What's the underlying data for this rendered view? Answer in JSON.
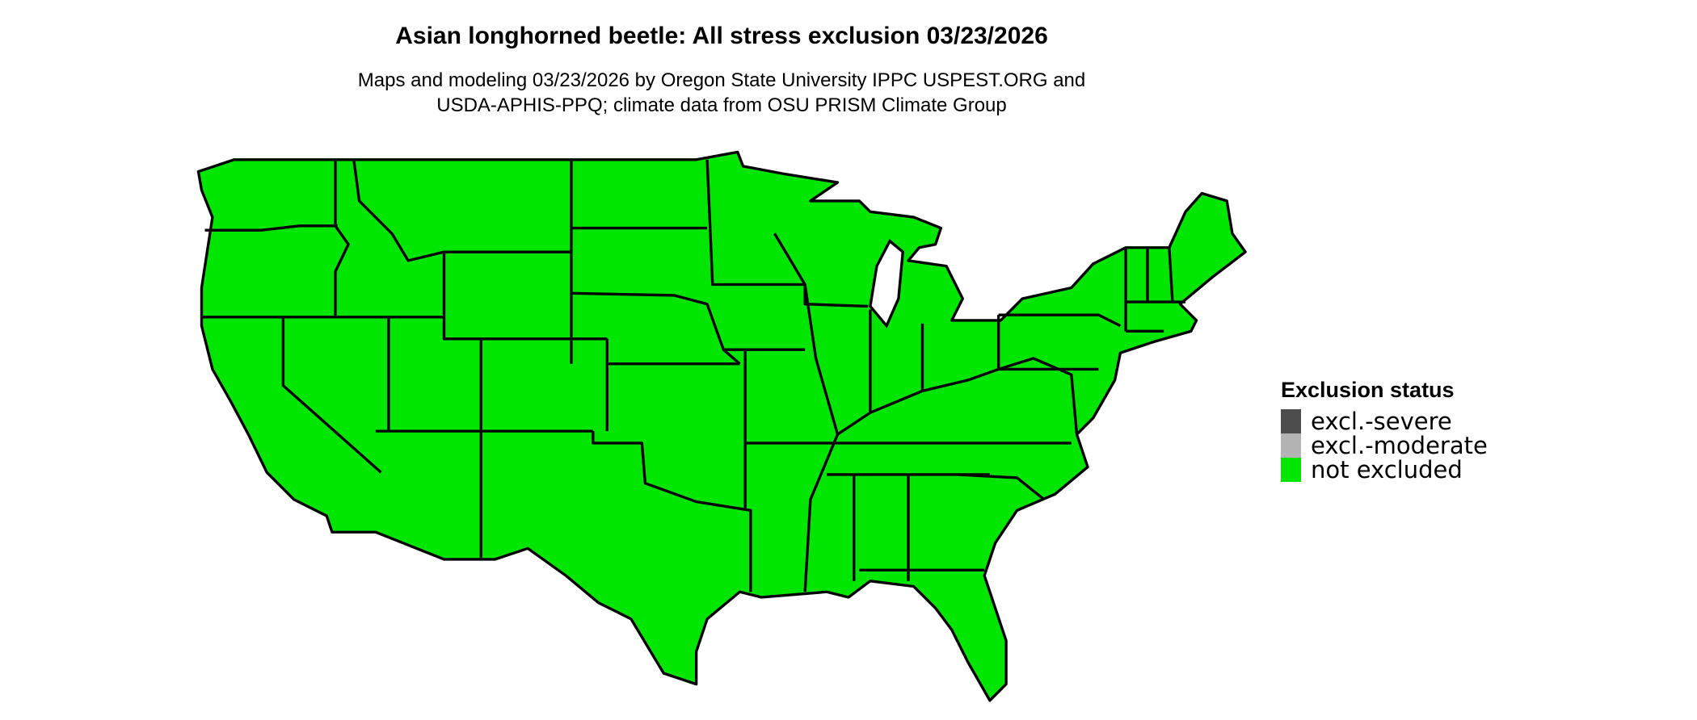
{
  "title": "Asian longhorned beetle: All stress exclusion 03/23/2026",
  "subtitle_line1": "Maps and modeling 03/23/2026 by Oregon State University IPPC USPEST.ORG and",
  "subtitle_line2": "USDA-APHIS-PPQ; climate data from OSU PRISM Climate Group",
  "map": {
    "region": "Contiguous United States",
    "fill_status": "not excluded",
    "fill_color": "#00e600",
    "border_color": "#000000"
  },
  "legend": {
    "title": "Exclusion status",
    "items": [
      {
        "label": "excl.-severe",
        "color": "#4d4d4d"
      },
      {
        "label": "excl.-moderate",
        "color": "#b3b3b3"
      },
      {
        "label": "not excluded",
        "color": "#00e600"
      }
    ]
  }
}
